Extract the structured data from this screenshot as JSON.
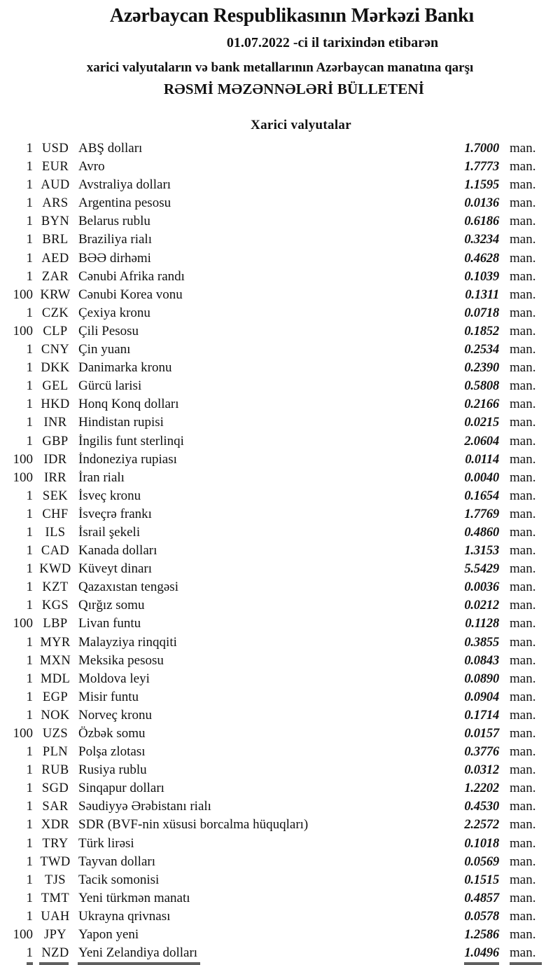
{
  "header": {
    "bank_name": "Azərbaycan Respublikasının Mərkəzi Bankı",
    "date_line": "01.07.2022 -ci il tarixindən etibarən",
    "subtitle": "xarici valyutaların və bank metallarının Azərbaycan manatına qarşı",
    "bulletin_title": "RƏSMİ MƏZƏNNƏLƏRİ BÜLLETENİ"
  },
  "section_title": "Xarici valyutalar",
  "unit_label": "man.",
  "colors": {
    "text": "#111111",
    "background": "#ffffff"
  },
  "rates": [
    {
      "qty": "1",
      "code": "USD",
      "name": "ABŞ dolları",
      "rate": "1.7000"
    },
    {
      "qty": "1",
      "code": "EUR",
      "name": "Avro",
      "rate": "1.7773"
    },
    {
      "qty": "1",
      "code": "AUD",
      "name": "Avstraliya dolları",
      "rate": "1.1595"
    },
    {
      "qty": "1",
      "code": "ARS",
      "name": "Argentina pesosu",
      "rate": "0.0136"
    },
    {
      "qty": "1",
      "code": "BYN",
      "name": "Belarus rublu",
      "rate": "0.6186"
    },
    {
      "qty": "1",
      "code": "BRL",
      "name": "Braziliya rialı",
      "rate": "0.3234"
    },
    {
      "qty": "1",
      "code": "AED",
      "name": "BƏƏ dirhəmi",
      "rate": "0.4628"
    },
    {
      "qty": "1",
      "code": "ZAR",
      "name": "Cənubi Afrika randı",
      "rate": "0.1039"
    },
    {
      "qty": "100",
      "code": "KRW",
      "name": "Cənubi Korea vonu",
      "rate": "0.1311"
    },
    {
      "qty": "1",
      "code": "CZK",
      "name": "Çexiya kronu",
      "rate": "0.0718"
    },
    {
      "qty": "100",
      "code": "CLP",
      "name": "Çili Pesosu",
      "rate": "0.1852"
    },
    {
      "qty": "1",
      "code": "CNY",
      "name": "Çin yuanı",
      "rate": "0.2534"
    },
    {
      "qty": "1",
      "code": "DKK",
      "name": "Danimarka kronu",
      "rate": "0.2390"
    },
    {
      "qty": "1",
      "code": "GEL",
      "name": "Gürcü larisi",
      "rate": "0.5808"
    },
    {
      "qty": "1",
      "code": "HKD",
      "name": "Honq Konq dolları",
      "rate": "0.2166"
    },
    {
      "qty": "1",
      "code": "INR",
      "name": "Hindistan rupisi",
      "rate": "0.0215"
    },
    {
      "qty": "1",
      "code": "GBP",
      "name": "İngilis funt sterlinqi",
      "rate": "2.0604"
    },
    {
      "qty": "100",
      "code": "IDR",
      "name": "İndoneziya rupiası",
      "rate": "0.0114"
    },
    {
      "qty": "100",
      "code": "IRR",
      "name": "İran rialı",
      "rate": "0.0040"
    },
    {
      "qty": "1",
      "code": "SEK",
      "name": "İsveç kronu",
      "rate": "0.1654"
    },
    {
      "qty": "1",
      "code": "CHF",
      "name": "İsveçrə frankı",
      "rate": "1.7769"
    },
    {
      "qty": "1",
      "code": "ILS",
      "name": "İsrail şekeli",
      "rate": "0.4860"
    },
    {
      "qty": "1",
      "code": "CAD",
      "name": "Kanada dolları",
      "rate": "1.3153"
    },
    {
      "qty": "1",
      "code": "KWD",
      "name": "Küveyt dinarı",
      "rate": "5.5429"
    },
    {
      "qty": "1",
      "code": "KZT",
      "name": "Qazaxıstan tengəsi",
      "rate": "0.0036"
    },
    {
      "qty": "1",
      "code": "KGS",
      "name": "Qırğız somu",
      "rate": "0.0212"
    },
    {
      "qty": "100",
      "code": "LBP",
      "name": "Livan funtu",
      "rate": "0.1128"
    },
    {
      "qty": "1",
      "code": "MYR",
      "name": "Malayziya rinqqiti",
      "rate": "0.3855"
    },
    {
      "qty": "1",
      "code": "MXN",
      "name": "Meksika pesosu",
      "rate": "0.0843"
    },
    {
      "qty": "1",
      "code": "MDL",
      "name": "Moldova leyi",
      "rate": "0.0890"
    },
    {
      "qty": "1",
      "code": "EGP",
      "name": "Misir funtu",
      "rate": "0.0904"
    },
    {
      "qty": "1",
      "code": "NOK",
      "name": "Norveç kronu",
      "rate": "0.1714"
    },
    {
      "qty": "100",
      "code": "UZS",
      "name": "Özbək somu",
      "rate": "0.0157"
    },
    {
      "qty": "1",
      "code": "PLN",
      "name": "Polşa zlotası",
      "rate": "0.3776"
    },
    {
      "qty": "1",
      "code": "RUB",
      "name": "Rusiya rublu",
      "rate": "0.0312"
    },
    {
      "qty": "1",
      "code": "SGD",
      "name": "Sinqapur dolları",
      "rate": "1.2202"
    },
    {
      "qty": "1",
      "code": "SAR",
      "name": "Səudiyyə Ərəbistanı rialı",
      "rate": "0.4530"
    },
    {
      "qty": "1",
      "code": "XDR",
      "name": "SDR (BVF-nin xüsusi borcalma hüquqları)",
      "rate": "2.2572"
    },
    {
      "qty": "1",
      "code": "TRY",
      "name": "Türk lirəsi",
      "rate": "0.1018"
    },
    {
      "qty": "1",
      "code": "TWD",
      "name": "Tayvan dolları",
      "rate": "0.0569"
    },
    {
      "qty": "1",
      "code": "TJS",
      "name": "Tacik somonisi",
      "rate": "0.1515"
    },
    {
      "qty": "1",
      "code": "TMT",
      "name": "Yeni türkmən manatı",
      "rate": "0.4857"
    },
    {
      "qty": "1",
      "code": "UAH",
      "name": "Ukrayna qrivnası",
      "rate": "0.0578"
    },
    {
      "qty": "100",
      "code": "JPY",
      "name": "Yapon yeni",
      "rate": "1.2586"
    },
    {
      "qty": "1",
      "code": "NZD",
      "name": "Yeni Zelandiya dolları",
      "rate": "1.0496"
    }
  ]
}
